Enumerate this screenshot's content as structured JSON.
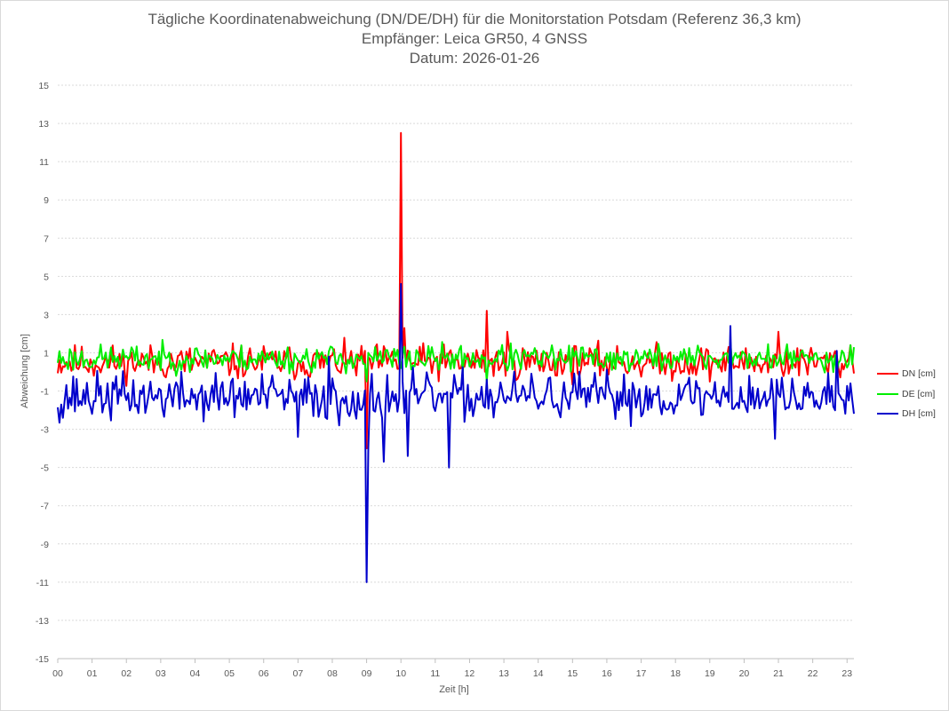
{
  "chart_data": {
    "type": "line",
    "title": "Tägliche Koordinatenabweichung (DN/DE/DH) für die Monitorstation Potsdam (Referenz 36,3 km)",
    "subtitle": "Empfänger: Leica GR50, 4 GNSS",
    "date_line": "Datum: 2026-01-26",
    "xlabel": "Zeit [h]",
    "ylabel": "Abweichung [cm]",
    "xlim": [
      0,
      23.2
    ],
    "ylim": [
      -15,
      15
    ],
    "x_ticks": [
      "00",
      "01",
      "02",
      "03",
      "04",
      "05",
      "06",
      "07",
      "08",
      "09",
      "10",
      "11",
      "12",
      "13",
      "14",
      "15",
      "16",
      "17",
      "18",
      "19",
      "20",
      "21",
      "22",
      "23"
    ],
    "y_ticks": [
      "15",
      "13",
      "11",
      "9",
      "7",
      "5",
      "3",
      "1",
      "-1",
      "-3",
      "-5",
      "-7",
      "-9",
      "-11",
      "-13",
      "-15"
    ],
    "legend_position": "right",
    "sample_interval_h": 0.05,
    "series": [
      {
        "name": "DN [cm]",
        "color": "#ff0000",
        "base": 0.5,
        "noise": 0.45,
        "seed": 11,
        "events": [
          {
            "x": 9.0,
            "y": -4.0
          },
          {
            "x": 10.0,
            "y": 12.5
          },
          {
            "x": 10.1,
            "y": 2.3
          },
          {
            "x": 12.5,
            "y": 3.2
          },
          {
            "x": 13.1,
            "y": 2.1
          },
          {
            "x": 21.0,
            "y": 2.1
          },
          {
            "x": 23.1,
            "y": 1.4
          }
        ]
      },
      {
        "name": "DE [cm]",
        "color": "#00ee00",
        "base": 0.7,
        "noise": 0.35,
        "seed": 23,
        "events": [
          {
            "x": 9.0,
            "y": -0.5
          },
          {
            "x": 10.0,
            "y": 0.2
          },
          {
            "x": 12.5,
            "y": -0.5
          },
          {
            "x": 19.6,
            "y": 1.6
          },
          {
            "x": 23.1,
            "y": 1.4
          }
        ]
      },
      {
        "name": "DH [cm]",
        "color": "#0000cc",
        "base": -1.3,
        "noise": 0.6,
        "seed": 37,
        "events": [
          {
            "x": 0.15,
            "y": -2.4
          },
          {
            "x": 7.0,
            "y": -3.4
          },
          {
            "x": 7.9,
            "y": 0.8
          },
          {
            "x": 8.2,
            "y": -2.8
          },
          {
            "x": 9.0,
            "y": -11.0
          },
          {
            "x": 9.05,
            "y": -4.0
          },
          {
            "x": 10.0,
            "y": 4.6
          },
          {
            "x": 10.2,
            "y": -4.4
          },
          {
            "x": 9.5,
            "y": -4.7
          },
          {
            "x": 11.4,
            "y": -5.0
          },
          {
            "x": 12.5,
            "y": -0.4
          },
          {
            "x": 19.6,
            "y": 2.4
          },
          {
            "x": 20.9,
            "y": -3.5
          },
          {
            "x": 22.7,
            "y": 1.1
          },
          {
            "x": 23.1,
            "y": -0.6
          }
        ]
      }
    ]
  }
}
